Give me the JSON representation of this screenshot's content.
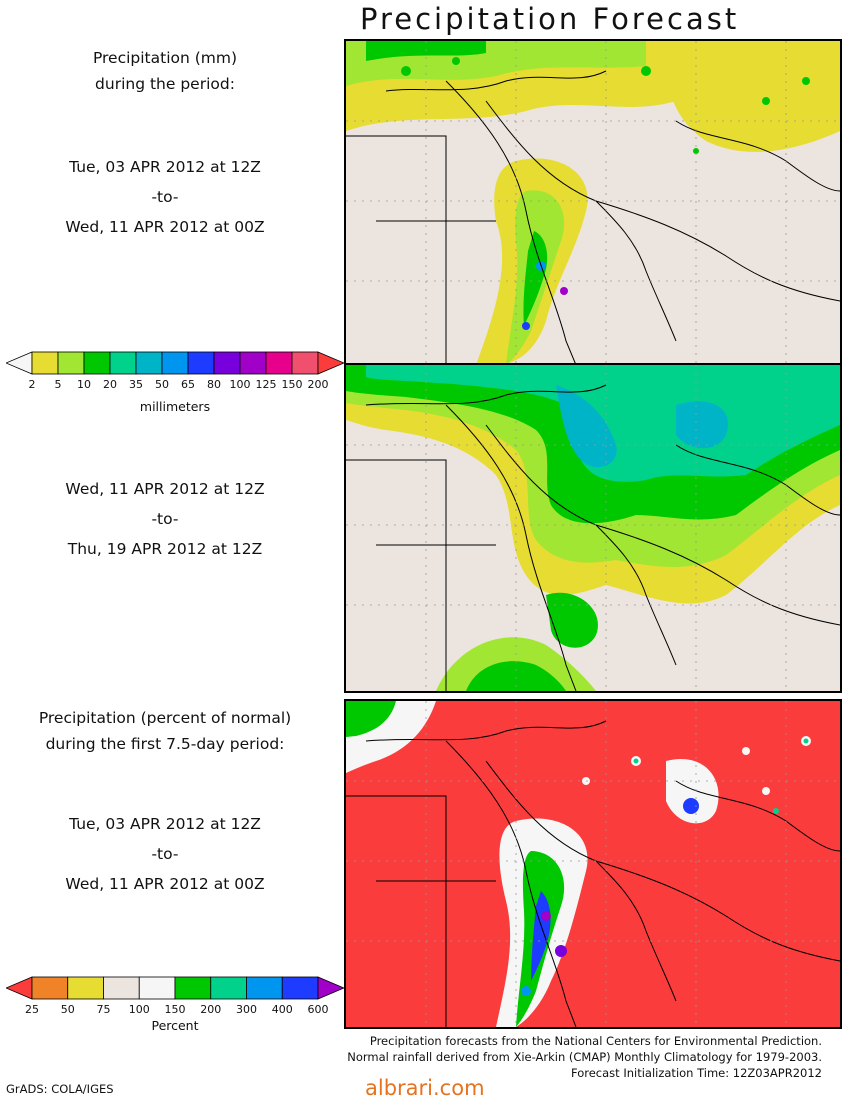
{
  "title": "Precipitation Forecast",
  "left_panel": {
    "block1": {
      "line1": "Precipitation (mm)",
      "line2": "during the period:"
    },
    "period1": {
      "from": "Tue, 03 APR 2012 at 12Z",
      "sep": "-to-",
      "to": "Wed, 11 APR 2012 at 00Z"
    },
    "period2": {
      "from": "Wed, 11 APR 2012 at 12Z",
      "sep": "-to-",
      "to": "Thu, 19 APR 2012 at 12Z"
    },
    "block3": {
      "line1": "Precipitation (percent of normal)",
      "line2": "during the first 7.5-day period:"
    },
    "period3": {
      "from": "Tue, 03 APR 2012 at 12Z",
      "sep": "-to-",
      "to": "Wed, 11 APR 2012 at 00Z"
    }
  },
  "scale_mm": {
    "ticks": [
      "2",
      "5",
      "10",
      "20",
      "35",
      "50",
      "65",
      "80",
      "100",
      "125",
      "150",
      "200"
    ],
    "colors": [
      "#f6f6f6",
      "#e6dc32",
      "#a0e632",
      "#00c800",
      "#00d28c",
      "#00b4c8",
      "#0096f0",
      "#1e3cff",
      "#7800dc",
      "#a000c8",
      "#e6008c",
      "#f0506e",
      "#fa3c3c"
    ],
    "unit": "millimeters"
  },
  "scale_pct": {
    "ticks": [
      "25",
      "50",
      "75",
      "100",
      "150",
      "200",
      "300",
      "400",
      "600"
    ],
    "colors": [
      "#fa3c3c",
      "#f08228",
      "#e6dc32",
      "#ece4de",
      "#f6f6f6",
      "#00c800",
      "#00d28c",
      "#0096f0",
      "#1e3cff",
      "#a000c8"
    ],
    "unit": "Percent"
  },
  "credits": {
    "line1": "Precipitation forecasts from the National Centers for Environmental Prediction.",
    "line2": "Normal rainfall derived from Xie-Arkin (CMAP) Monthly Climatology for 1979-2003.",
    "line3": "Forecast Initialization Time: 12Z03APR2012"
  },
  "footer": {
    "left": "GrADS: COLA/IGES",
    "watermark": "albrari.com"
  }
}
